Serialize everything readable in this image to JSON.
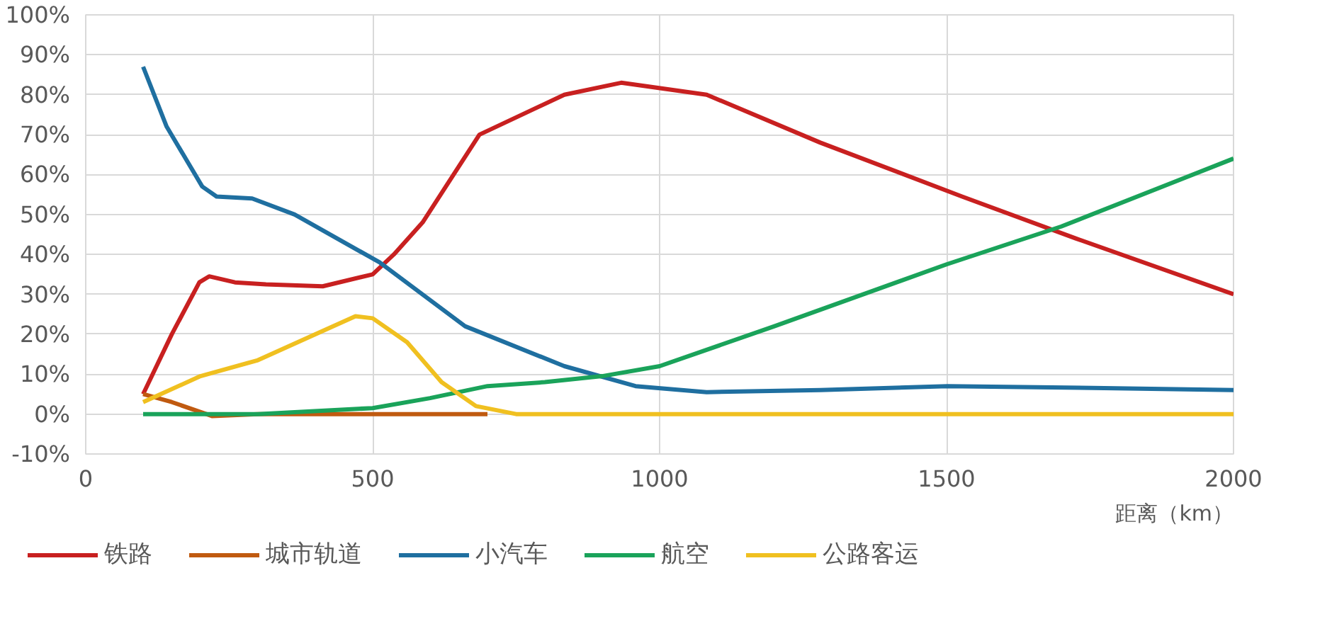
{
  "chart_data": {
    "type": "line",
    "xlabel": "距离（km）",
    "xlim": [
      0,
      2000
    ],
    "xticks": [
      0,
      500,
      1000,
      1500,
      2000
    ],
    "ylim": [
      -10,
      100
    ],
    "yticks": [
      {
        "value": -10,
        "label": "-10%"
      },
      {
        "value": 0,
        "label": "0%"
      },
      {
        "value": 10,
        "label": "10%"
      },
      {
        "value": 20,
        "label": "20%"
      },
      {
        "value": 30,
        "label": "30%"
      },
      {
        "value": 40,
        "label": "40%"
      },
      {
        "value": 50,
        "label": "50%"
      },
      {
        "value": 60,
        "label": "60%"
      },
      {
        "value": 70,
        "label": "70%"
      },
      {
        "value": 80,
        "label": "80%"
      },
      {
        "value": 90,
        "label": "90%"
      },
      {
        "value": 100,
        "label": "100%"
      }
    ],
    "grid": true,
    "legend": "bottom",
    "line_style": "solid",
    "marker": "none",
    "series": [
      {
        "name": "铁路",
        "color": "#c82020",
        "x": [
          100,
          150,
          198,
          215,
          260,
          314,
          413,
          500,
          537,
          587,
          686,
          834,
          933,
          1082,
          1280,
          1527,
          1725,
          2000
        ],
        "values": [
          5,
          20,
          33,
          34.5,
          33,
          32.5,
          32,
          35,
          40,
          48,
          70,
          80,
          83,
          80,
          68,
          54.5,
          44,
          30
        ]
      },
      {
        "name": "城市轨道",
        "color": "#c05a10",
        "x": [
          100,
          150,
          220,
          300,
          500,
          700
        ],
        "values": [
          5,
          3,
          -0.5,
          0,
          0,
          0
        ]
      },
      {
        "name": "小汽车",
        "color": "#1f6fa0",
        "x": [
          100,
          141,
          203,
          228,
          290,
          364,
          512,
          661,
          834,
          958,
          1082,
          1280,
          1502,
          1775,
          2000
        ],
        "values": [
          87,
          72,
          57,
          54.5,
          54,
          50,
          38,
          22,
          12,
          7,
          5.5,
          6,
          7,
          6.5,
          6
        ]
      },
      {
        "name": "航空",
        "color": "#1aa35a",
        "x": [
          100,
          300,
          500,
          600,
          700,
          800,
          900,
          1000,
          1200,
          1500,
          1700,
          2000
        ],
        "values": [
          0,
          0,
          1.5,
          4,
          7,
          8,
          9.5,
          12,
          22,
          37.5,
          47,
          64
        ]
      },
      {
        "name": "公路客运",
        "color": "#f0c020",
        "x": [
          100,
          200,
          300,
          400,
          470,
          500,
          560,
          620,
          680,
          750,
          1000,
          1500,
          2000
        ],
        "values": [
          3,
          9.5,
          13.5,
          20,
          24.5,
          24,
          18,
          8,
          2,
          0,
          0,
          0,
          0
        ]
      }
    ]
  }
}
